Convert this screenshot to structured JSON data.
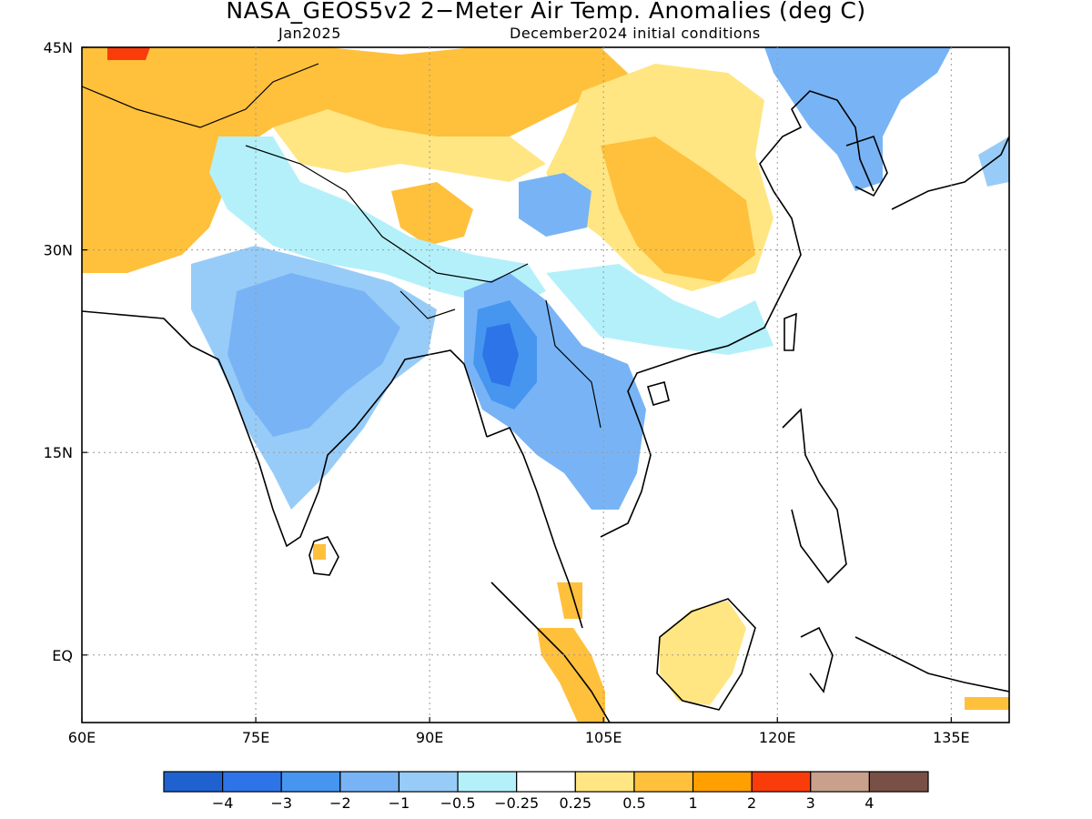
{
  "title": "NASA_GEOS5v2 2−Meter Air Temp. Anomalies (deg C)",
  "subtitle_left": "Jan2025",
  "subtitle_right": "December2024 initial conditions",
  "map": {
    "lon_range": [
      60,
      140
    ],
    "lat_range": [
      -5,
      45
    ],
    "lon_ticks": [
      {
        "v": 60,
        "label": "60E"
      },
      {
        "v": 75,
        "label": "75E"
      },
      {
        "v": 90,
        "label": "90E"
      },
      {
        "v": 105,
        "label": "105E"
      },
      {
        "v": 120,
        "label": "120E"
      },
      {
        "v": 135,
        "label": "135E"
      }
    ],
    "lat_ticks": [
      {
        "v": 45,
        "label": "45N"
      },
      {
        "v": 30,
        "label": "30N"
      },
      {
        "v": 15,
        "label": "15N"
      },
      {
        "v": 0,
        "label": "EQ"
      }
    ],
    "gridlines": "dotted"
  },
  "colorbar": {
    "colors": [
      "#1f62cf",
      "#2d74e8",
      "#4696f0",
      "#78b4f5",
      "#98ccf8",
      "#b4f0fa",
      "#ffffff",
      "#ffe682",
      "#ffc03c",
      "#ffa000",
      "#fa3c0a",
      "#c8a08c",
      "#785046"
    ],
    "labels": [
      "−4",
      "−3",
      "−2",
      "−1",
      "−0.5",
      "−0.25",
      "0.25",
      "0.5",
      "1",
      "2",
      "3",
      "4"
    ]
  },
  "anomaly_regions": [
    {
      "name": "central-asia-warm",
      "level": "1"
    },
    {
      "name": "northwest-china-warm",
      "level": "1"
    },
    {
      "name": "north-china-warm",
      "level": "0.5"
    },
    {
      "name": "central-china-warm",
      "level": "1"
    },
    {
      "name": "kazakhstan-hot-spot",
      "level": "3"
    },
    {
      "name": "tibet-cool",
      "level": "-1"
    },
    {
      "name": "india-cool",
      "level": "-2"
    },
    {
      "name": "myanmar-cold",
      "level": "-4"
    },
    {
      "name": "indochina-cool",
      "level": "-2"
    },
    {
      "name": "northeast-asia-cool",
      "level": "-2"
    },
    {
      "name": "borneo-warm",
      "level": "0.5"
    },
    {
      "name": "sumatra-warm",
      "level": "1"
    }
  ]
}
